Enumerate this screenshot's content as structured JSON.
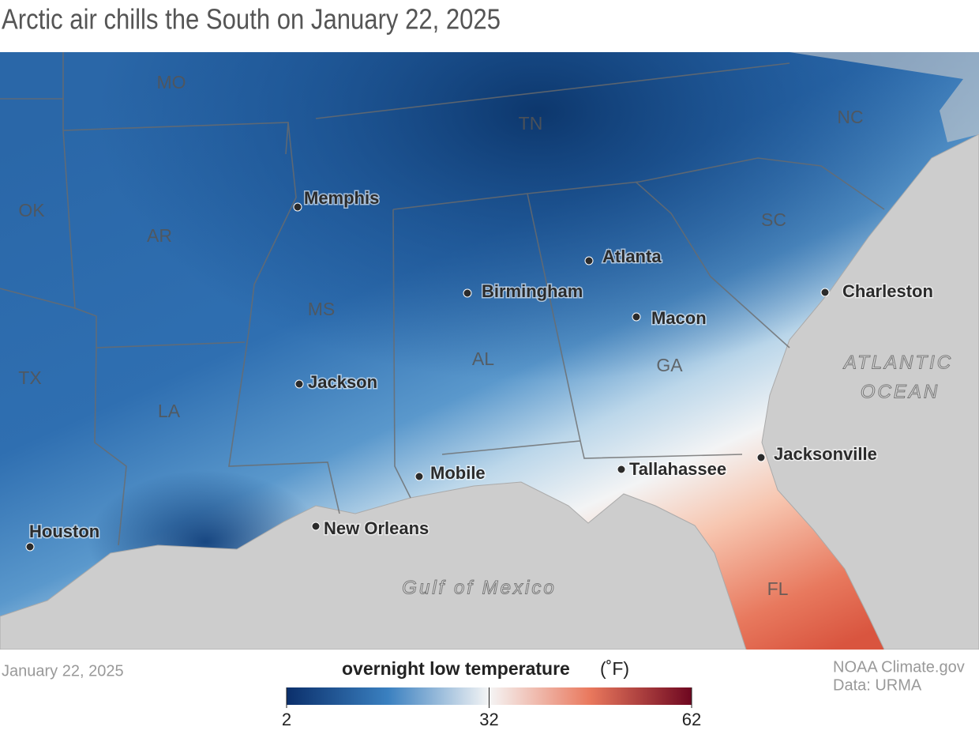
{
  "title": "Arctic air chills the South on January 22, 2025",
  "map": {
    "states": [
      "MO",
      "TN",
      "NC",
      "OK",
      "AR",
      "SC",
      "MS",
      "AL",
      "GA",
      "TX",
      "LA",
      "FL"
    ],
    "cities": [
      "Memphis",
      "Atlanta",
      "Birmingham",
      "Charleston",
      "Macon",
      "Jackson",
      "Jacksonville",
      "Tallahassee",
      "Mobile",
      "New Orleans",
      "Houston"
    ],
    "water": [
      "Gulf of Mexico",
      "ATLANTIC",
      "OCEAN"
    ]
  },
  "footer": {
    "date": "January 22, 2025",
    "credit": [
      "NOAA Climate.gov",
      "Data: URMA"
    ]
  },
  "legend": {
    "title": "overnight low temperature",
    "unit": "(˚F)",
    "lim": [
      2,
      62
    ],
    "ticks": [
      2,
      32,
      62
    ]
  }
}
